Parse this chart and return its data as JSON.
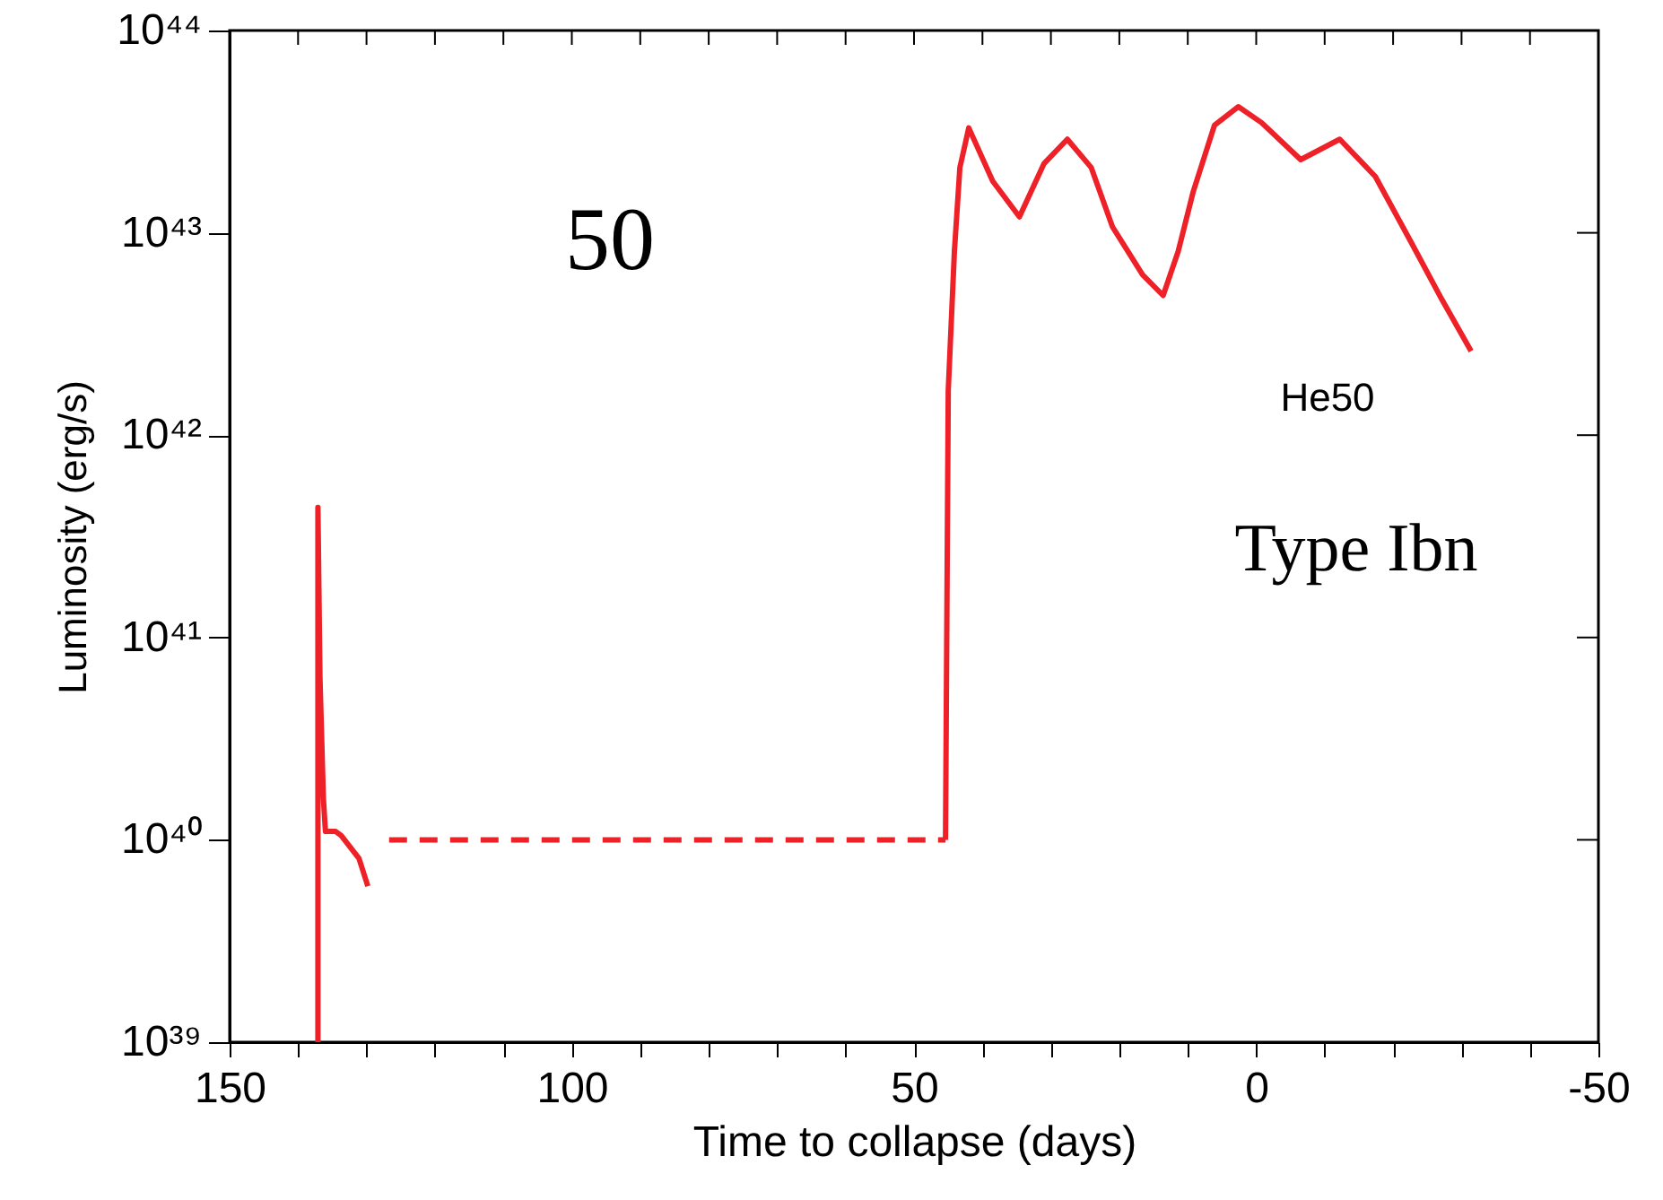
{
  "chart_data": {
    "type": "line",
    "xlabel": "Time to collapse (days)",
    "ylabel": "Luminosity (erg/s)",
    "log": "y",
    "grid": false,
    "marker": "none",
    "xlim": [
      150,
      -50
    ],
    "xticks": [
      150,
      {
        "value": 140,
        "label": null
      },
      {
        "value": 130,
        "label": null
      },
      {
        "value": 120,
        "label": null
      },
      {
        "value": 110,
        "label": null
      },
      100,
      {
        "value": 90,
        "label": null
      },
      {
        "value": 80,
        "label": null
      },
      {
        "value": 70,
        "label": null
      },
      {
        "value": 60,
        "label": null
      },
      50,
      {
        "value": 40,
        "label": null
      },
      {
        "value": 30,
        "label": null
      },
      {
        "value": 20,
        "label": null
      },
      {
        "value": 10,
        "label": null
      },
      0,
      {
        "value": -10,
        "label": null
      },
      {
        "value": -20,
        "label": null
      },
      {
        "value": -30,
        "label": null
      },
      {
        "value": -40,
        "label": null
      },
      -50
    ],
    "ylim": [
      1e+39,
      1e+44
    ],
    "yticks": [
      {
        "value": 1e+39,
        "label": "10³⁹"
      },
      {
        "value": 1e+40,
        "label": "10⁴⁰"
      },
      {
        "value": 1e+41,
        "label": "10⁴¹"
      },
      {
        "value": 1e+42,
        "label": "10⁴²"
      },
      {
        "value": 1e+43,
        "label": "10⁴³"
      },
      {
        "value": 1e+44,
        "label": "10⁴⁴"
      }
    ],
    "annotations": [
      "50",
      "He50",
      "Type Ibn"
    ],
    "series": [
      {
        "color": "#ee2028",
        "line_style": "solid",
        "x": [
          137.1,
          137.1,
          136.8,
          136.3,
          136.0,
          134.5,
          133.7,
          131.1,
          129.8
        ],
        "values": [
          1e+39,
          4.4e+41,
          6.3e+40,
          1.6e+40,
          1.1e+40,
          1.1e+40,
          1.05e+40,
          8.1e+39,
          5.9e+39
        ]
      },
      {
        "color": "#ee2028",
        "line_style": "dashed",
        "x": [
          126.7,
          45.4
        ],
        "values": [
          1e+40,
          1e+40
        ]
      },
      {
        "color": "#ee2028",
        "line_style": "solid",
        "x": [
          45.4,
          45.0,
          44.1,
          43.3,
          42.0,
          38.5,
          34.6,
          31.0,
          27.6,
          24.1,
          21.0,
          16.6,
          13.6,
          11.4,
          9.2,
          6.1,
          2.6,
          -0.8,
          -6.5,
          -12.2,
          -17.4,
          -22.7,
          -27.1,
          -31.4
        ],
        "values": [
          1e+40,
          1.66e+42,
          8.1e+42,
          2.1e+43,
          3.3e+43,
          1.8e+43,
          1.2e+43,
          2.2e+43,
          2.9e+43,
          2.1e+43,
          1.07e+43,
          6.2e+42,
          4.9e+42,
          8.1e+42,
          1.6e+43,
          3.4e+43,
          4.2e+43,
          3.5e+43,
          2.3e+43,
          2.9e+43,
          1.9e+43,
          8.9e+42,
          4.7e+42,
          2.6e+42
        ]
      }
    ]
  }
}
